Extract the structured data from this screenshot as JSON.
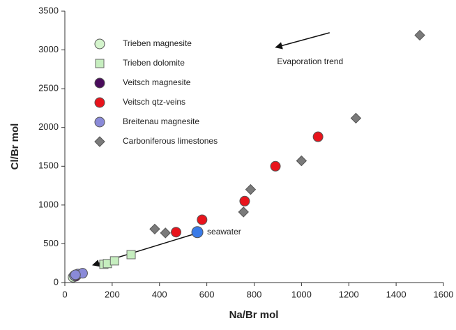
{
  "chart_data": {
    "type": "scatter",
    "xlabel": "Na/Br mol",
    "ylabel": "Cl/Br mol",
    "xlim": [
      0,
      1600
    ],
    "xticks": [
      0,
      200,
      400,
      600,
      800,
      1000,
      1200,
      1400,
      1600
    ],
    "ylim": [
      0,
      3500
    ],
    "yticks": [
      0,
      500,
      1000,
      1500,
      2000,
      2500,
      3000,
      3500
    ],
    "legend": "upper left",
    "series": [
      {
        "name": "Trieben magnesite",
        "marker": "circle",
        "color": "#d4f4cc",
        "x": [
          35,
          50
        ],
        "values": [
          70,
          95
        ]
      },
      {
        "name": "Trieben dolomite",
        "marker": "square",
        "color": "#c6eebf",
        "x": [
          165,
          180,
          210,
          280
        ],
        "values": [
          235,
          245,
          280,
          360
        ]
      },
      {
        "name": "Veitsch magnesite",
        "marker": "circle",
        "color": "#4a0c5c",
        "x": [
          45
        ],
        "values": [
          80
        ]
      },
      {
        "name": "Veitsch qtz-veins",
        "marker": "circle",
        "color": "#e8141c",
        "x": [
          470,
          580,
          760,
          890,
          1070
        ],
        "values": [
          650,
          810,
          1050,
          1500,
          1880
        ]
      },
      {
        "name": "Breitenau magnesite",
        "marker": "circle",
        "color": "#8a8ad8",
        "x": [
          40,
          55,
          75,
          45
        ],
        "values": [
          90,
          110,
          120,
          100
        ]
      },
      {
        "name": "Carboniferous limestones",
        "marker": "diamond",
        "color": "#7a7a7a",
        "x": [
          380,
          425,
          755,
          785,
          1000,
          1230,
          1500
        ],
        "values": [
          690,
          640,
          910,
          1200,
          1570,
          2120,
          3190
        ]
      }
    ],
    "annotations": [
      {
        "text": "seawater",
        "color": "#3a7be8",
        "x": 560,
        "y": 650
      },
      {
        "text": "Evaporation trend",
        "x": 897,
        "y": 2844
      }
    ],
    "arrows": [
      {
        "x": [
          1119,
          891
        ],
        "y": [
          3222,
          3033
        ]
      },
      {
        "x": [
          552,
          118
        ],
        "y": [
          631,
          225
        ]
      }
    ]
  }
}
